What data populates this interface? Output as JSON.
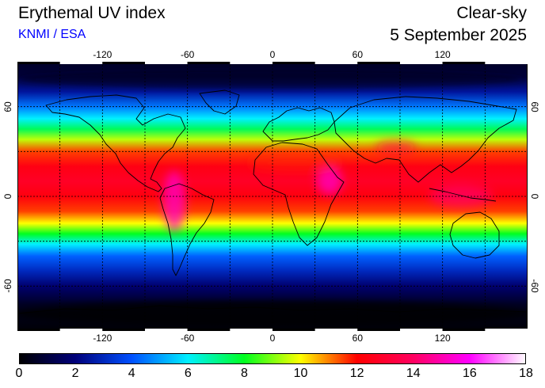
{
  "header": {
    "title": "Erythemal UV index",
    "credit": "KNMI / ESA",
    "condition": "Clear-sky",
    "date": "5 September 2025"
  },
  "map": {
    "projection": "equirectangular",
    "lon_range": [
      -180,
      180
    ],
    "lat_range": [
      -90,
      90
    ],
    "graticule_lon": [
      -150,
      -120,
      -90,
      -60,
      -30,
      0,
      30,
      60,
      90,
      120,
      150
    ],
    "graticule_lat": [
      -60,
      -30,
      0,
      30,
      60
    ],
    "lon_tick_labels": [
      {
        "value": -120,
        "text": "-120"
      },
      {
        "value": -60,
        "text": "-60"
      },
      {
        "value": 0,
        "text": "0"
      },
      {
        "value": 60,
        "text": "60"
      },
      {
        "value": 120,
        "text": "120"
      }
    ],
    "lat_tick_labels": [
      {
        "value": 60,
        "text": "60"
      },
      {
        "value": 0,
        "text": "0"
      },
      {
        "value": -60,
        "text": "-60"
      }
    ],
    "background_color": "#000018"
  },
  "colorbar": {
    "min": 0,
    "max": 18,
    "labels": [
      "0",
      "2",
      "4",
      "6",
      "8",
      "10",
      "12",
      "14",
      "16",
      "18"
    ],
    "stops": [
      {
        "value": 0,
        "color": "#000000"
      },
      {
        "value": 2,
        "color": "#00007a"
      },
      {
        "value": 4,
        "color": "#0050ff"
      },
      {
        "value": 6,
        "color": "#00f0ff"
      },
      {
        "value": 8,
        "color": "#00ff20"
      },
      {
        "value": 10,
        "color": "#ffff00"
      },
      {
        "value": 12,
        "color": "#ff0000"
      },
      {
        "value": 14,
        "color": "#ff0060"
      },
      {
        "value": 16,
        "color": "#ff00ff"
      },
      {
        "value": 18,
        "color": "#ffffff"
      }
    ]
  }
}
